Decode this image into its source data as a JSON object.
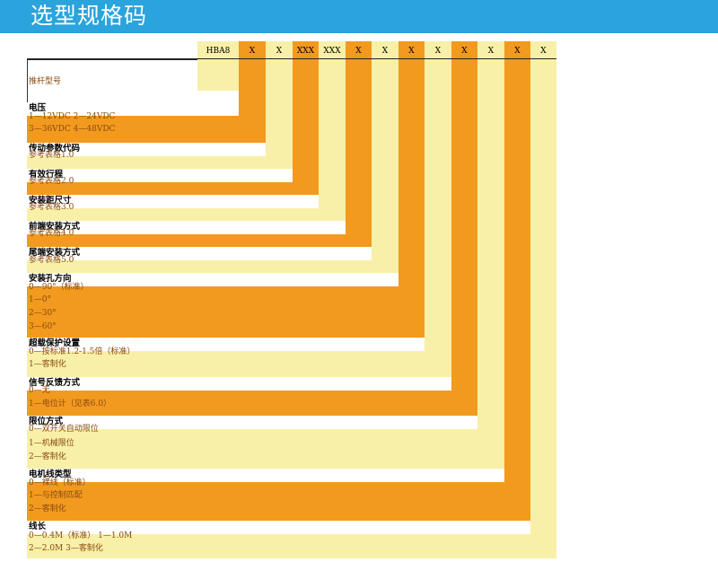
{
  "header": {
    "title": "选型规格码"
  },
  "code_row": [
    "HBA8",
    "X",
    "X",
    "XXX",
    "XXX",
    "X",
    "X",
    "X",
    "X",
    "X",
    "X",
    "X",
    "X"
  ],
  "row_label": "推杆型号",
  "sections": [
    {
      "title": "电压",
      "lines": [
        "1—12VDC      2—24VDC",
        "3—36VDC      4—48VDC"
      ]
    },
    {
      "title": "传动参数代码",
      "lines": [
        "参考表格1.0"
      ]
    },
    {
      "title": "有效行程",
      "lines": [
        "参考表格2.0"
      ]
    },
    {
      "title": "安装距尺寸",
      "lines": [
        "参考表格3.0"
      ]
    },
    {
      "title": "前端安装方式",
      "lines": [
        "参考表格4.0"
      ]
    },
    {
      "title": "尾端安装方式",
      "lines": [
        "参考表格5.0"
      ]
    },
    {
      "title": "安装孔方向",
      "lines": [
        "0—90°（标准）",
        "1—0°",
        "2—30°",
        "3—60°"
      ]
    },
    {
      "title": "超载保护设置",
      "lines": [
        "0—按标准1.2-1.5倍（标准）",
        "1—客制化"
      ]
    },
    {
      "title": "信号反馈方式",
      "lines": [
        "0—无",
        "1—电位计（见表6.0）"
      ]
    },
    {
      "title": "限位方式",
      "lines": [
        "0—双开关自动限位",
        "1—机械限位",
        "2—客制化"
      ]
    },
    {
      "title": "电机线类型",
      "lines": [
        "0—裸线（标准）",
        "1—与控制匹配",
        "2—客制化"
      ]
    },
    {
      "title": "线长",
      "lines": [
        "0—0.4M（标准）        1—1.0M",
        "2—2.0M              3—客制化"
      ]
    }
  ],
  "colors": {
    "orange": "#f29a1e",
    "cream": "#f8f0a8",
    "header_blue": "#2ba3dc",
    "text_dark": "#8a4a10"
  }
}
